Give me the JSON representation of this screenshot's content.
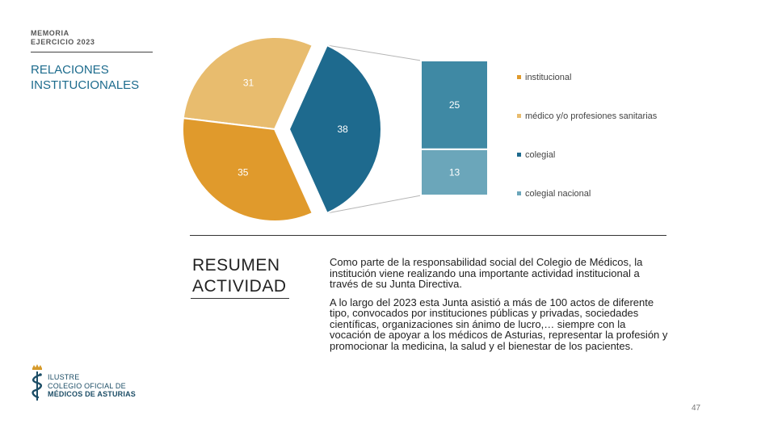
{
  "header": {
    "memoria": "MEMORIA",
    "ejercicio": "EJERCICIO 2023",
    "section_line1": "RELACIONES",
    "section_line2": "INSTITUCIONALES"
  },
  "chart_data": {
    "type": "bar-of-pie",
    "pie": {
      "slices": [
        {
          "name": "médico y/o profesiones sanitarias",
          "value": 31,
          "color": "#e8bc6e"
        },
        {
          "name": "colegial",
          "value": 38,
          "color": "#1e6a8e"
        },
        {
          "name": "institucional",
          "value": 35,
          "color": "#e09a2c"
        }
      ]
    },
    "bar": {
      "segments": [
        {
          "name": "colegial",
          "value": 25,
          "color": "#3f89a4"
        },
        {
          "name": "colegial nacional",
          "value": 13,
          "color": "#6ba6ba"
        }
      ]
    },
    "legend": [
      {
        "label": "institucional",
        "color": "#e09a2c"
      },
      {
        "label": "médico y/o profesiones sanitarias",
        "color": "#e8bc6e"
      },
      {
        "label": "colegial",
        "color": "#1e6a8e"
      },
      {
        "label": "colegial nacional",
        "color": "#6ba6ba"
      }
    ],
    "legend_position": "right"
  },
  "summary": {
    "title_line1": "RESUMEN",
    "title_line2": "ACTIVIDAD",
    "paragraph1": "Como parte de la responsabilidad social del Colegio de Médicos, la institución viene realizando una importante actividad institucional a través de su Junta Directiva.",
    "paragraph2": "A lo largo del 2023 esta Junta asistió a más de 100 actos de diferente tipo, convocados por instituciones públicas y privadas, sociedades científicas, organizaciones sin ánimo de lucro,… siempre con la vocación de apoyar a los médicos de Asturias, representar la profesión y promocionar la medicina, la salud y el bienestar de los pacientes."
  },
  "footer": {
    "logo_line1": "ILUSTRE",
    "logo_line2": "COLEGIO OFICIAL DE",
    "logo_line3": "MÉDICOS DE ASTURIAS",
    "page_number": "47"
  }
}
